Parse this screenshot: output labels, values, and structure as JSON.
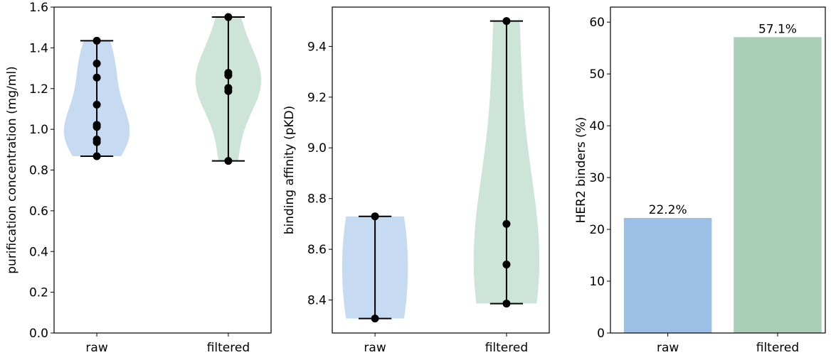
{
  "colors": {
    "raw_violin": "#c6dbf2",
    "filtered_violin": "#cde4d8",
    "raw_bar": "#9bbfe5",
    "filtered_bar": "#aacfb9",
    "axis": "#000000",
    "marker": "#000000"
  },
  "chart_data": [
    {
      "type": "violin",
      "title": "",
      "xlabel": "",
      "ylabel": "purification concentration (mg/ml)",
      "categories": [
        "raw",
        "filtered"
      ],
      "ylim": [
        0.0,
        1.6
      ],
      "yticks": [
        "0.0",
        "0.2",
        "0.4",
        "0.6",
        "0.8",
        "1.0",
        "1.2",
        "1.4",
        "1.6"
      ],
      "ytick_values": [
        0.0,
        0.2,
        0.4,
        0.6,
        0.8,
        1.0,
        1.2,
        1.4,
        1.6
      ],
      "series": [
        {
          "name": "raw",
          "values": [
            1.435,
            1.323,
            1.254,
            1.121,
            1.022,
            1.012,
            0.95,
            0.937,
            0.868
          ]
        },
        {
          "name": "filtered",
          "values": [
            1.551,
            1.277,
            1.265,
            1.203,
            1.188,
            0.845
          ]
        }
      ],
      "grid": false
    },
    {
      "type": "violin",
      "title": "",
      "xlabel": "",
      "ylabel": "binding affinity (pKD)",
      "categories": [
        "raw",
        "filtered"
      ],
      "ylim": [
        8.27,
        9.555
      ],
      "yticks": [
        "8.4",
        "8.6",
        "8.8",
        "9.0",
        "9.2",
        "9.4"
      ],
      "ytick_values": [
        8.4,
        8.6,
        8.8,
        9.0,
        9.2,
        9.4
      ],
      "series": [
        {
          "name": "raw",
          "values": [
            8.73,
            8.327
          ]
        },
        {
          "name": "filtered",
          "values": [
            9.5,
            8.7,
            8.54,
            8.386
          ]
        }
      ],
      "grid": false
    },
    {
      "type": "bar",
      "title": "",
      "xlabel": "",
      "ylabel": "HER2 binders (%)",
      "categories": [
        "raw",
        "filtered"
      ],
      "values": [
        22.2,
        57.1
      ],
      "data_labels": [
        "22.2%",
        "57.1%"
      ],
      "ylim": [
        0,
        62.9
      ],
      "yticks": [
        "0",
        "10",
        "20",
        "30",
        "40",
        "50",
        "60"
      ],
      "ytick_values": [
        0,
        10,
        20,
        30,
        40,
        50,
        60
      ],
      "grid": false
    }
  ]
}
